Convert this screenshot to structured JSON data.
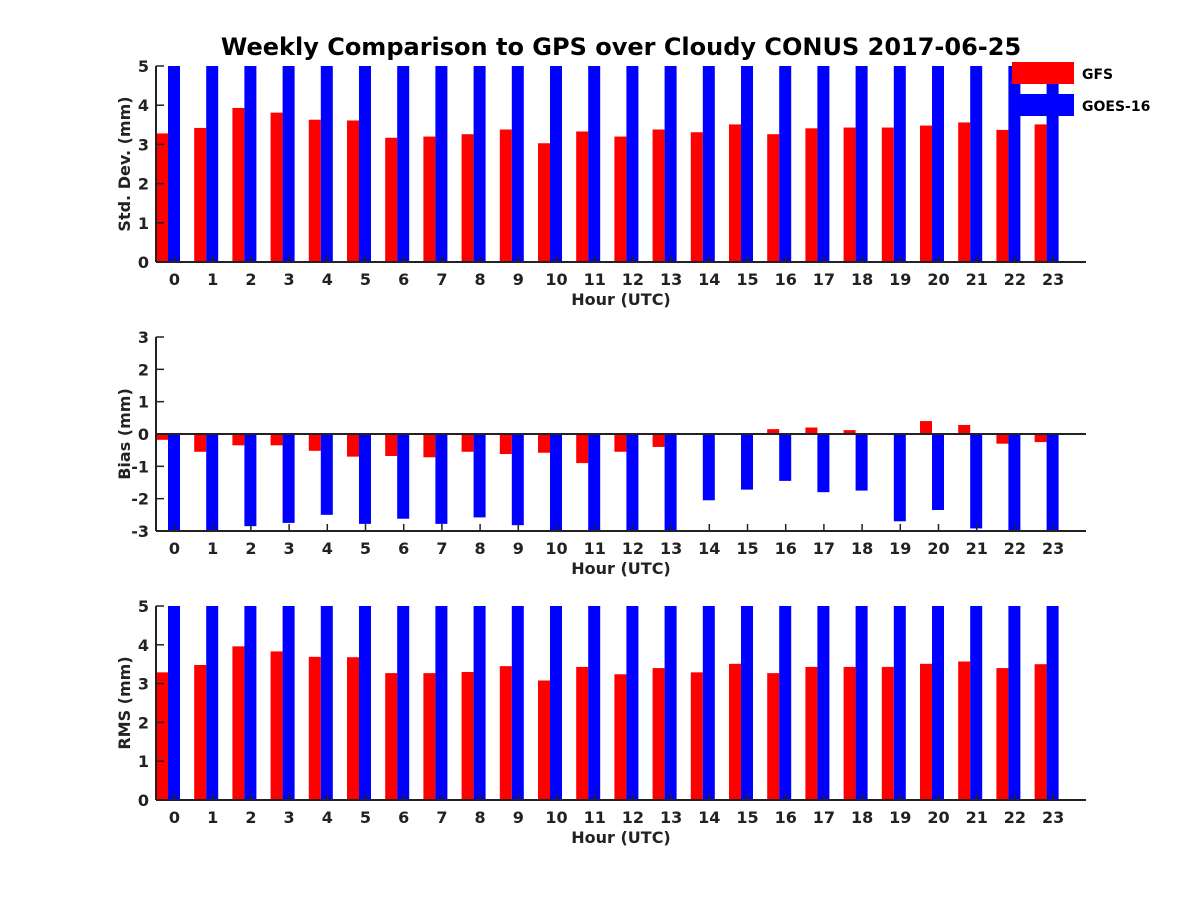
{
  "title": "Weekly Comparison to GPS over Cloudy CONUS 2017-06-25",
  "colors": {
    "GFS": "#ff0000",
    "GOES-16": "#0000ff",
    "axis": "#222222"
  },
  "legend": [
    {
      "name": "GFS",
      "color": "#ff0000"
    },
    {
      "name": "GOES-16",
      "color": "#0000ff"
    }
  ],
  "chart_data": [
    {
      "type": "bar",
      "categories": [
        "0",
        "1",
        "2",
        "3",
        "4",
        "5",
        "6",
        "7",
        "8",
        "9",
        "10",
        "11",
        "12",
        "13",
        "14",
        "15",
        "16",
        "17",
        "18",
        "19",
        "20",
        "21",
        "22",
        "23"
      ],
      "xlabel": "Hour (UTC)",
      "ylabel": "Std. Dev. (mm)",
      "ylim": [
        0,
        5
      ],
      "yticks": [
        "0",
        "1",
        "2",
        "3",
        "4",
        "5"
      ],
      "series": [
        {
          "name": "GFS",
          "values": [
            3.28,
            3.42,
            3.93,
            3.81,
            3.63,
            3.61,
            3.17,
            3.2,
            3.26,
            3.38,
            3.03,
            3.33,
            3.2,
            3.38,
            3.31,
            3.51,
            3.26,
            3.41,
            3.43,
            3.43,
            3.48,
            3.56,
            3.37,
            3.51
          ]
        },
        {
          "name": "GOES-16",
          "values": [
            5.2,
            5.2,
            5.2,
            5.2,
            5.2,
            5.2,
            5.2,
            5.2,
            5.2,
            5.2,
            5.2,
            5.2,
            5.2,
            5.2,
            5.2,
            5.2,
            5.2,
            5.2,
            5.2,
            5.2,
            5.2,
            5.2,
            5.2,
            5.2
          ]
        }
      ]
    },
    {
      "type": "bar",
      "categories": [
        "0",
        "1",
        "2",
        "3",
        "4",
        "5",
        "6",
        "7",
        "8",
        "9",
        "10",
        "11",
        "12",
        "13",
        "14",
        "15",
        "16",
        "17",
        "18",
        "19",
        "20",
        "21",
        "22",
        "23"
      ],
      "xlabel": "Hour (UTC)",
      "ylabel": "Bias (mm)",
      "ylim": [
        -3,
        3
      ],
      "yticks": [
        "-3",
        "-2",
        "-1",
        "0",
        "1",
        "2",
        "3"
      ],
      "zero_line": true,
      "series": [
        {
          "name": "GFS",
          "values": [
            -0.18,
            -0.55,
            -0.35,
            -0.35,
            -0.52,
            -0.7,
            -0.68,
            -0.72,
            -0.55,
            -0.62,
            -0.58,
            -0.9,
            -0.55,
            -0.4,
            0.02,
            0.02,
            0.15,
            0.2,
            0.12,
            0.0,
            0.4,
            0.28,
            -0.3,
            -0.25
          ]
        },
        {
          "name": "GOES-16",
          "values": [
            -3.2,
            -3.2,
            -2.85,
            -2.75,
            -2.5,
            -2.78,
            -2.62,
            -2.78,
            -2.58,
            -2.82,
            -3.2,
            -3.2,
            -3.2,
            -3.2,
            -2.05,
            -1.72,
            -1.45,
            -1.8,
            -1.75,
            -2.7,
            -2.35,
            -2.92,
            -3.2,
            -3.2
          ]
        }
      ]
    },
    {
      "type": "bar",
      "categories": [
        "0",
        "1",
        "2",
        "3",
        "4",
        "5",
        "6",
        "7",
        "8",
        "9",
        "10",
        "11",
        "12",
        "13",
        "14",
        "15",
        "16",
        "17",
        "18",
        "19",
        "20",
        "21",
        "22",
        "23"
      ],
      "xlabel": "Hour (UTC)",
      "ylabel": "RMS (mm)",
      "ylim": [
        0,
        5
      ],
      "yticks": [
        "0",
        "1",
        "2",
        "3",
        "4",
        "5"
      ],
      "series": [
        {
          "name": "GFS",
          "values": [
            3.29,
            3.48,
            3.96,
            3.83,
            3.69,
            3.68,
            3.27,
            3.27,
            3.3,
            3.45,
            3.08,
            3.43,
            3.24,
            3.4,
            3.29,
            3.51,
            3.27,
            3.43,
            3.43,
            3.43,
            3.51,
            3.57,
            3.4,
            3.5
          ]
        },
        {
          "name": "GOES-16",
          "values": [
            5.2,
            5.2,
            5.2,
            5.2,
            5.2,
            5.2,
            5.2,
            5.2,
            5.2,
            5.2,
            5.2,
            5.2,
            5.2,
            5.2,
            5.2,
            5.2,
            5.2,
            5.2,
            5.2,
            5.2,
            5.2,
            5.2,
            5.2,
            5.2
          ]
        }
      ]
    }
  ]
}
